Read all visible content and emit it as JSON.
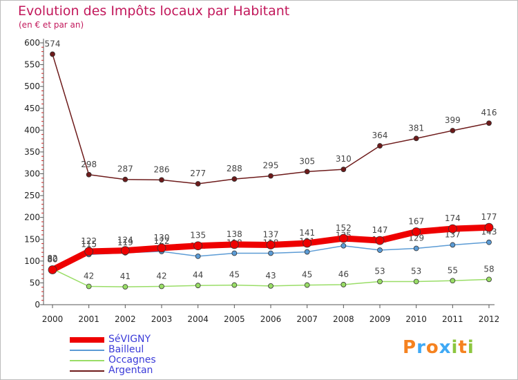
{
  "chart_data": {
    "type": "line",
    "title": "Evolution des Impôts locaux par Habitant",
    "subtitle": "(en € et par an)",
    "xlabel": "",
    "ylabel": "",
    "ylim": [
      0,
      600
    ],
    "y_ticks": [
      0,
      50,
      100,
      150,
      200,
      250,
      300,
      350,
      400,
      450,
      500,
      550,
      600
    ],
    "categories": [
      "2000",
      "2001",
      "2002",
      "2003",
      "2004",
      "2005",
      "2006",
      "2007",
      "2008",
      "2009",
      "2010",
      "2011",
      "2012"
    ],
    "grid": false,
    "legend_position": "bottom-left",
    "series": [
      {
        "name": "Argentan",
        "color": "#6d1a1a",
        "values": [
          574,
          298,
          287,
          286,
          277,
          288,
          295,
          305,
          310,
          364,
          381,
          399,
          416
        ]
      },
      {
        "name": "Occagnes",
        "color": "#99dd66",
        "values": [
          82,
          42,
          41,
          42,
          44,
          45,
          43,
          45,
          46,
          53,
          53,
          55,
          58
        ]
      },
      {
        "name": "Bailleul",
        "color": "#5b9bd5",
        "values": [
          80,
          115,
          119,
          122,
          111,
          118,
          118,
          121,
          135,
          125,
          129,
          137,
          143
        ]
      },
      {
        "name": "SéVIGNY",
        "color": "#ee0000",
        "values": [
          80,
          122,
          124,
          130,
          135,
          138,
          137,
          141,
          152,
          147,
          167,
          174,
          177
        ]
      }
    ]
  },
  "legend": {
    "items": [
      {
        "label": "SéVIGNY",
        "color": "#ee0000"
      },
      {
        "label": "Bailleul",
        "color": "#5b9bd5"
      },
      {
        "label": "Occagnes",
        "color": "#99dd66"
      },
      {
        "label": "Argentan",
        "color": "#6d1a1a"
      }
    ]
  },
  "brand": {
    "letters": [
      "P",
      "r",
      "o",
      "x",
      "i",
      "t",
      "i"
    ],
    "colors": [
      "#f58220",
      "#3fa9f5",
      "#f58220",
      "#3fa9f5",
      "#8cc63f",
      "#f58220",
      "#8cc63f"
    ]
  }
}
